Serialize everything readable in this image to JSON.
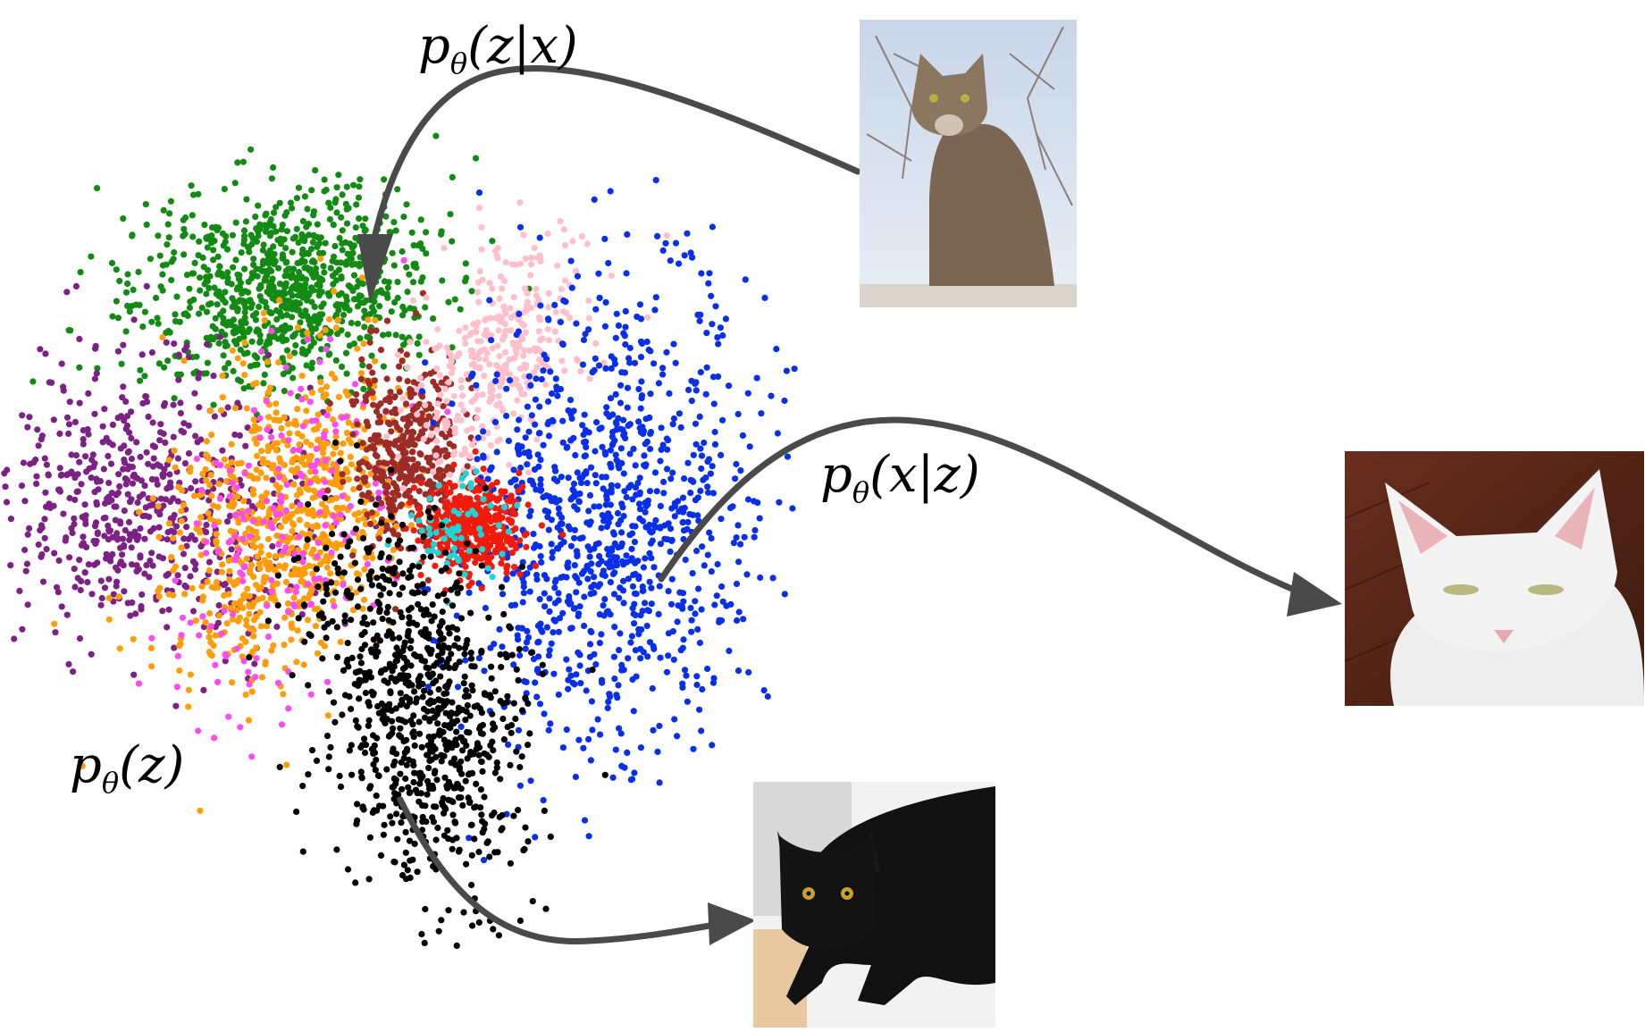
{
  "labels": {
    "posterior": {
      "p": "p",
      "sub": "θ",
      "args": "(z|x)"
    },
    "likelihood": {
      "p": "p",
      "sub": "θ",
      "args": "(x|z)"
    },
    "prior": {
      "p": "p",
      "sub": "θ",
      "args": "(z)"
    }
  },
  "clusters": [
    {
      "color": "#138a13",
      "cx": 320,
      "cy": 320,
      "sx": 85,
      "sy": 55,
      "n": 900,
      "rot": -0.15
    },
    {
      "color": "#7d2285",
      "cx": 160,
      "cy": 560,
      "sx": 95,
      "sy": 75,
      "n": 650,
      "rot": 0.2
    },
    {
      "color": "#ff9d0a",
      "cx": 320,
      "cy": 580,
      "sx": 60,
      "sy": 95,
      "n": 800,
      "rot": 0.35
    },
    {
      "color": "#ff4cf2",
      "cx": 320,
      "cy": 600,
      "sx": 55,
      "sy": 110,
      "n": 200,
      "rot": 0.3
    },
    {
      "color": "#9e2c26",
      "cx": 455,
      "cy": 500,
      "sx": 30,
      "sy": 55,
      "n": 380,
      "rot": 0.0
    },
    {
      "color": "#ffc0cb",
      "cx": 555,
      "cy": 400,
      "sx": 40,
      "sy": 70,
      "n": 350,
      "rot": 0.5
    },
    {
      "color": "#0a2fe8",
      "cx": 680,
      "cy": 580,
      "sx": 80,
      "sy": 130,
      "n": 1000,
      "rot": 0.1
    },
    {
      "color": "#f21a0a",
      "cx": 530,
      "cy": 590,
      "sx": 28,
      "sy": 25,
      "n": 450,
      "rot": 0.0
    },
    {
      "color": "#1ed4d4",
      "cx": 510,
      "cy": 590,
      "sx": 30,
      "sy": 30,
      "n": 60,
      "rot": 0.0
    },
    {
      "color": "#000000",
      "cx": 470,
      "cy": 790,
      "sx": 55,
      "sy": 105,
      "n": 850,
      "rot": -0.25
    }
  ],
  "colors": {
    "arrow": "#4a4a4a"
  }
}
